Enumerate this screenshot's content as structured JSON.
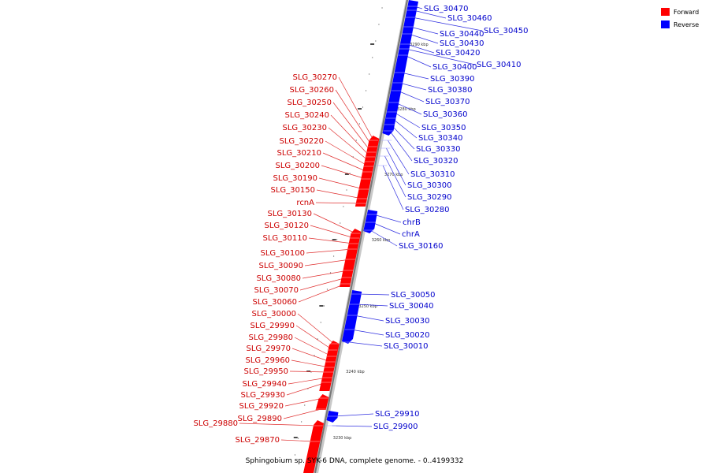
{
  "caption": "Sphingobium sp. SYK-6 DNA, complete genome. - 0..4199332",
  "legend": [
    {
      "label": "Forward",
      "color": "#ff0000"
    },
    {
      "label": "Reverse",
      "color": "#0000ff"
    }
  ],
  "colors": {
    "forward": "#ff0000",
    "reverse": "#0000ff",
    "forward_label": "#cc0000",
    "reverse_label": "#0000cc",
    "backbone": "#9a9a9a"
  },
  "tick_labels": [
    "3290 kbp",
    "3280 kbp",
    "3270 kbp",
    "3260 kbp",
    "3250 kbp",
    "3240 kbp",
    "3230 kbp"
  ],
  "forward_genes": [
    "SLG_30270",
    "SLG_30260",
    "SLG_30250",
    "SLG_30240",
    "SLG_30230",
    "SLG_30220",
    "SLG_30210",
    "SLG_30200",
    "SLG_30190",
    "SLG_30150",
    "rcnA",
    "SLG_30130",
    "SLG_30120",
    "SLG_30110",
    "SLG_30100",
    "SLG_30090",
    "SLG_30080",
    "SLG_30070",
    "SLG_30060",
    "SLG_30000",
    "SLG_29990",
    "SLG_29980",
    "SLG_29970",
    "SLG_29960",
    "SLG_29950",
    "SLG_29940",
    "SLG_29930",
    "SLG_29920",
    "SLG_29890",
    "SLG_29880",
    "SLG_29870"
  ],
  "reverse_genes": [
    "SLG_30470",
    "SLG_30460",
    "SLG_30450",
    "SLG_30440",
    "SLG_30430",
    "SLG_30420",
    "SLG_30410",
    "SLG_30400",
    "SLG_30390",
    "SLG_30380",
    "SLG_30370",
    "SLG_30360",
    "SLG_30350",
    "SLG_30340",
    "SLG_30330",
    "SLG_30320",
    "SLG_30310",
    "SLG_30300",
    "SLG_30290",
    "SLG_30280",
    "chrB",
    "chrA",
    "SLG_30160",
    "SLG_30050",
    "SLG_30040",
    "SLG_30030",
    "SLG_30020",
    "SLG_30010",
    "SLG_29910",
    "SLG_29900"
  ]
}
